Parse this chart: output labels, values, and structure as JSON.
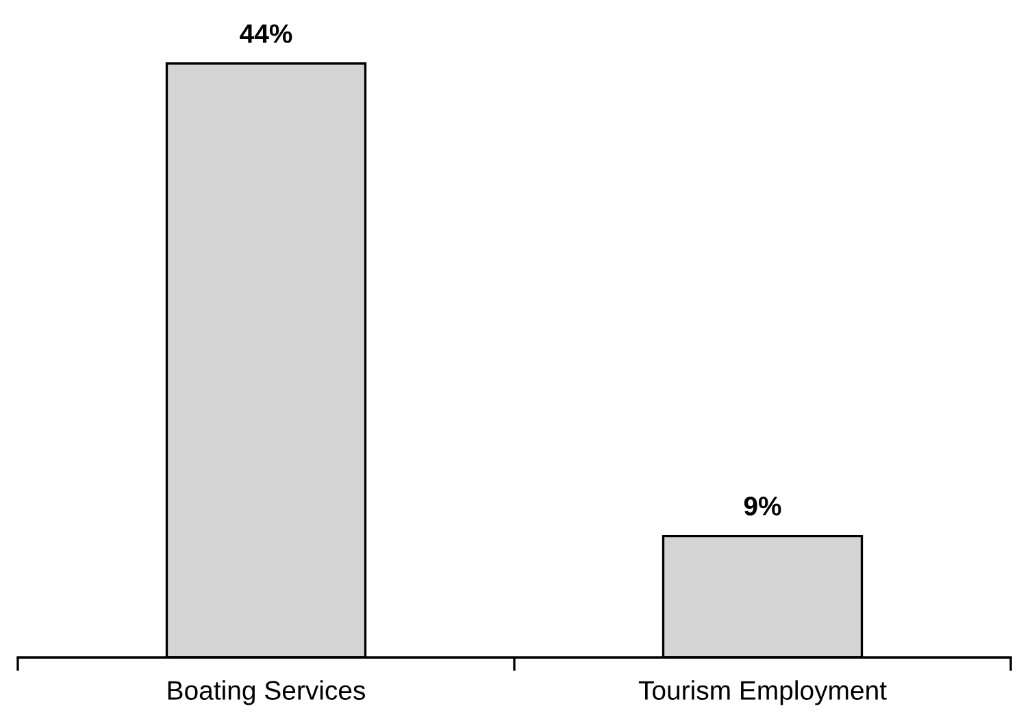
{
  "chart_data": {
    "type": "bar",
    "categories": [
      "Boating Services",
      "Tourism Employment"
    ],
    "values": [
      44,
      9
    ],
    "value_labels": [
      "44%",
      "9%"
    ],
    "color": "#d4d4d4"
  }
}
